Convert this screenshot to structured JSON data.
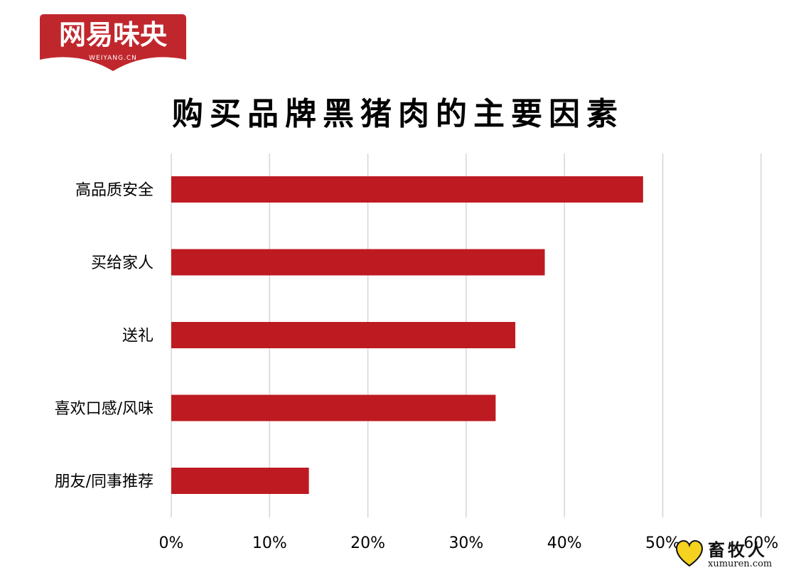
{
  "logo": {
    "main": "网易味央",
    "sub": "WEIYANG.CN",
    "color": "#c0272d"
  },
  "watermark": {
    "main": "畜牧人",
    "sub": "xumuren.com"
  },
  "chart_data": {
    "type": "bar",
    "orientation": "horizontal",
    "title": "购买品牌黑猪肉的主要因素",
    "categories": [
      "高品质安全",
      "买给家人",
      "送礼",
      "喜欢口感/风味",
      "朋友/同事推荐"
    ],
    "values": [
      48,
      38,
      35,
      33,
      14
    ],
    "xlim": [
      0,
      60
    ],
    "xticks": [
      "0%",
      "10%",
      "20%",
      "30%",
      "40%",
      "50%",
      "60%"
    ],
    "grid": "vertical",
    "bar_color": "#be1a21",
    "legend": "none"
  }
}
